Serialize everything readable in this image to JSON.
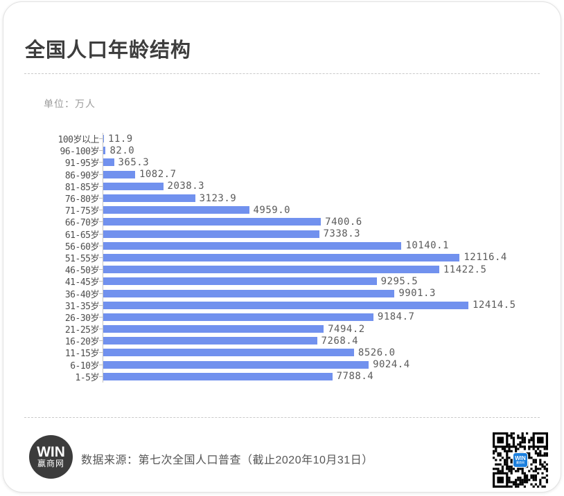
{
  "page": {
    "title": "全国人口年龄结构",
    "unit_label": "单位：万人"
  },
  "chart_data": {
    "type": "bar",
    "orientation": "horizontal",
    "title": "全国人口年龄结构",
    "unit": "万人",
    "categories": [
      "100岁以上",
      "96-100岁",
      "91-95岁",
      "86-90岁",
      "81-85岁",
      "76-80岁",
      "71-75岁",
      "66-70岁",
      "61-65岁",
      "56-60岁",
      "51-55岁",
      "46-50岁",
      "41-45岁",
      "36-40岁",
      "31-35岁",
      "26-30岁",
      "21-25岁",
      "16-20岁",
      "11-15岁",
      "6-10岁",
      "1-5岁"
    ],
    "values": [
      11.9,
      82.0,
      365.3,
      1082.7,
      2038.3,
      3123.9,
      4959.0,
      7400.6,
      7338.3,
      10140.1,
      12116.4,
      11422.5,
      9295.5,
      9901.3,
      12414.5,
      9184.7,
      7494.2,
      7268.4,
      8526.0,
      9024.4,
      7788.4
    ],
    "value_labels": [
      "11.9",
      "82.0",
      "365.3",
      "1082.7",
      "2038.3",
      "3123.9",
      "4959.0",
      "7400.6",
      "7338.3",
      "10140.1",
      "12116.4",
      "11422.5",
      "9295.5",
      "9901.3",
      "12414.5",
      "9184.7",
      "7494.2",
      "7268.4",
      "8526.0",
      "9024.4",
      "7788.4"
    ],
    "xlim": [
      0,
      12414.5
    ],
    "bar_color": "#7191ee",
    "axis_color": "#c5c5c5",
    "grid": false,
    "legend": false
  },
  "footer": {
    "source_text": "数据来源：第七次全国人口普查（截止2020年10月31日）",
    "logo": {
      "brand": "WIN",
      "name": "赢商网"
    },
    "qr": {
      "center_brand": "WIN",
      "center_name": "赢商网"
    }
  }
}
